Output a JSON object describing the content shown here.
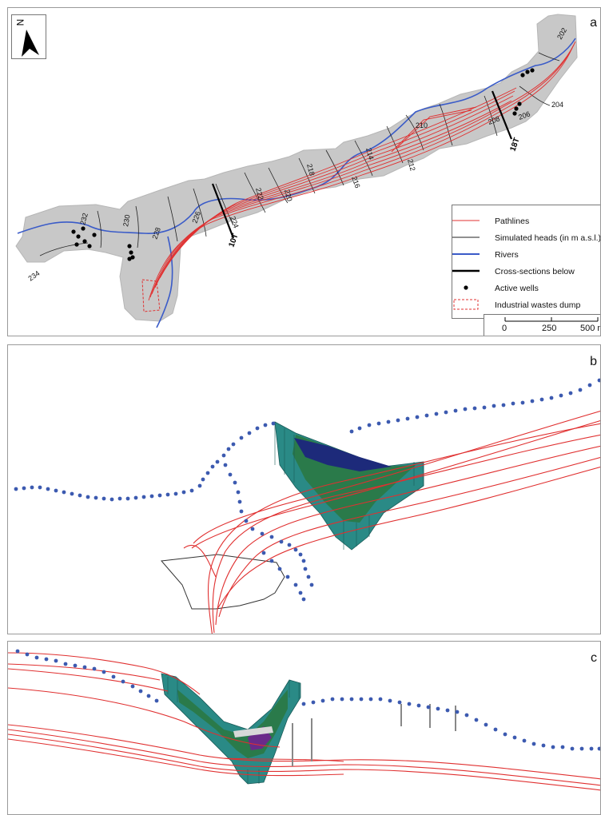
{
  "panel_letters": {
    "a": "a",
    "b": "b",
    "c": "c"
  },
  "north_label": "N",
  "legend": {
    "pathlines": "Pathlines",
    "heads": "Simulated heads (in m a.s.l.)",
    "rivers": "Rivers",
    "sections": "Cross-sections below",
    "wells": "Active wells",
    "dump": "Industrial wastes dump"
  },
  "scale_labels": [
    "0",
    "250",
    "500 m"
  ],
  "section_labels": {
    "s10T": "10T",
    "s18T": "18T"
  },
  "head_labels": [
    "202",
    "204",
    "206",
    "208",
    "210",
    "212",
    "214",
    "216",
    "218",
    "220",
    "222",
    "224",
    "226",
    "228",
    "230",
    "232",
    "234"
  ],
  "colors": {
    "pathline": "#e03030",
    "river": "#3a5bc8",
    "domain": "#c8c8c8",
    "head": "#222222",
    "well": "#000000",
    "dump": "#e03030",
    "well_dots_3d": "#3c5ab0",
    "layer_top": "#1d2a7a",
    "layer_mid": "#2a7a4a",
    "layer_low": "#2a8a86"
  }
}
